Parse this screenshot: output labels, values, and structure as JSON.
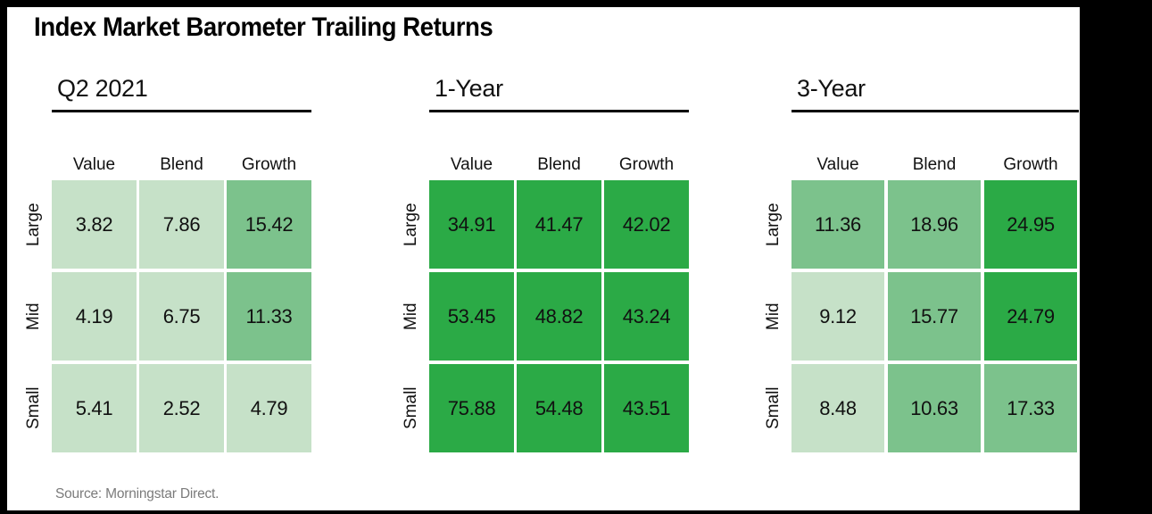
{
  "title": "Index Market Barometer Trailing Returns",
  "source_note": "Source: Morningstar Direct.",
  "colors": {
    "frame": "#000000",
    "light_green": "#c6e1c8",
    "mid_green": "#7cc28c",
    "strong_green": "#2baa46",
    "text": "#111111",
    "source_text": "#7b7b7b"
  },
  "color_scale": {
    "description": "cell shade by return value",
    "thresholds": [
      10,
      20
    ],
    "classes": [
      "light_green",
      "mid_green",
      "strong_green"
    ]
  },
  "chart_data": [
    {
      "type": "heatmap",
      "title": "Q2 2021",
      "rows": [
        "Large",
        "Mid",
        "Small"
      ],
      "columns": [
        "Value",
        "Blend",
        "Growth"
      ],
      "values": [
        [
          3.82,
          7.86,
          15.42
        ],
        [
          4.19,
          6.75,
          11.33
        ],
        [
          5.41,
          2.52,
          4.79
        ]
      ]
    },
    {
      "type": "heatmap",
      "title": "1-Year",
      "rows": [
        "Large",
        "Mid",
        "Small"
      ],
      "columns": [
        "Value",
        "Blend",
        "Growth"
      ],
      "values": [
        [
          34.91,
          41.47,
          42.02
        ],
        [
          53.45,
          48.82,
          43.24
        ],
        [
          75.88,
          54.48,
          43.51
        ]
      ]
    },
    {
      "type": "heatmap",
      "title": "3-Year",
      "rows": [
        "Large",
        "Mid",
        "Small"
      ],
      "columns": [
        "Value",
        "Blend",
        "Growth"
      ],
      "values": [
        [
          11.36,
          18.96,
          24.95
        ],
        [
          9.12,
          15.77,
          24.79
        ],
        [
          8.48,
          10.63,
          17.33
        ]
      ]
    }
  ]
}
